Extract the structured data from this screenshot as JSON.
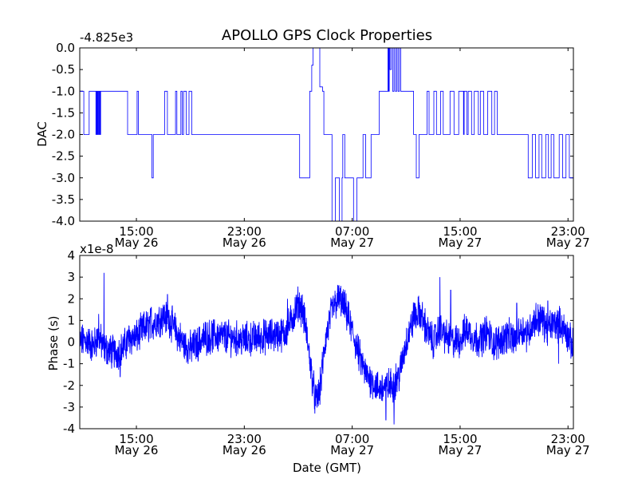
{
  "figure": {
    "title": "APOLLO GPS Clock Properties",
    "xlabel": "Date (GMT)"
  },
  "chart_data": [
    {
      "type": "line",
      "ylabel": "DAC",
      "offset_label": "-4.825e3",
      "ylim": [
        -4.0,
        0.0
      ],
      "yticks": [
        "0.0",
        "-0.5",
        "-1.0",
        "-1.5",
        "-2.0",
        "-2.5",
        "-3.0",
        "-3.5",
        "-4.0"
      ],
      "xlim_hours": [
        10.8,
        47.4
      ],
      "xticks": [
        {
          "x": 15,
          "time": "15:00",
          "date": "May 26"
        },
        {
          "x": 23,
          "time": "23:00",
          "date": "May 26"
        },
        {
          "x": 31,
          "time": "07:00",
          "date": "May 27"
        },
        {
          "x": 39,
          "time": "15:00",
          "date": "May 27"
        },
        {
          "x": 47,
          "time": "23:00",
          "date": "May 27"
        }
      ],
      "grid": false,
      "color": "#0000ff",
      "series_steps": [
        [
          10.8,
          -1.0
        ],
        [
          11.1,
          -2.0
        ],
        [
          11.5,
          -1.0
        ],
        [
          12.0,
          -2.0
        ],
        [
          12.05,
          -1.0
        ],
        [
          12.1,
          -2.0
        ],
        [
          12.15,
          -1.0
        ],
        [
          12.2,
          -2.0
        ],
        [
          12.25,
          -1.0
        ],
        [
          12.3,
          -2.0
        ],
        [
          12.35,
          -1.0
        ],
        [
          14.3,
          -1.0
        ],
        [
          14.35,
          -2.0
        ],
        [
          15.0,
          -2.0
        ],
        [
          15.05,
          -1.0
        ],
        [
          15.15,
          -2.0
        ],
        [
          16.1,
          -2.0
        ],
        [
          16.15,
          -3.0
        ],
        [
          16.25,
          -2.0
        ],
        [
          17.0,
          -2.0
        ],
        [
          17.1,
          -1.0
        ],
        [
          17.3,
          -2.0
        ],
        [
          17.8,
          -2.0
        ],
        [
          17.9,
          -1.0
        ],
        [
          18.0,
          -2.0
        ],
        [
          18.3,
          -1.0
        ],
        [
          18.4,
          -2.0
        ],
        [
          18.5,
          -1.0
        ],
        [
          18.7,
          -2.0
        ],
        [
          18.9,
          -1.0
        ],
        [
          19.1,
          -2.0
        ],
        [
          27.0,
          -2.0
        ],
        [
          27.1,
          -3.0
        ],
        [
          27.8,
          -3.0
        ],
        [
          27.85,
          -1.0
        ],
        [
          28.0,
          -0.4
        ],
        [
          28.1,
          0.0
        ],
        [
          28.5,
          0.0
        ],
        [
          28.6,
          -0.9
        ],
        [
          28.8,
          -1.0
        ],
        [
          28.9,
          -2.0
        ],
        [
          29.4,
          -2.0
        ],
        [
          29.5,
          -4.0
        ],
        [
          29.7,
          -4.0
        ],
        [
          29.75,
          -3.0
        ],
        [
          30.0,
          -3.0
        ],
        [
          30.05,
          -4.0
        ],
        [
          30.2,
          -4.0
        ],
        [
          30.25,
          -3.0
        ],
        [
          30.3,
          -2.0
        ],
        [
          30.45,
          -3.0
        ],
        [
          31.0,
          -3.0
        ],
        [
          31.1,
          -4.0
        ],
        [
          31.3,
          -4.0
        ],
        [
          31.35,
          -3.0
        ],
        [
          31.5,
          -3.0
        ],
        [
          31.6,
          -3.0
        ],
        [
          31.8,
          -2.0
        ],
        [
          32.0,
          -3.0
        ],
        [
          32.1,
          -3.0
        ],
        [
          32.3,
          -3.0
        ],
        [
          32.4,
          -2.0
        ],
        [
          33.0,
          -1.0
        ],
        [
          33.6,
          -1.0
        ],
        [
          33.65,
          0.0
        ],
        [
          33.7,
          -1.0
        ],
        [
          33.75,
          0.0
        ],
        [
          33.8,
          -0.5
        ],
        [
          33.9,
          0.0
        ],
        [
          34.0,
          -1.0
        ],
        [
          34.1,
          0.0
        ],
        [
          34.2,
          -1.0
        ],
        [
          34.3,
          0.0
        ],
        [
          34.4,
          -1.0
        ],
        [
          34.5,
          0.0
        ],
        [
          34.6,
          -1.0
        ],
        [
          35.5,
          -1.0
        ],
        [
          35.55,
          -2.0
        ],
        [
          35.7,
          -2.0
        ],
        [
          35.75,
          -3.0
        ],
        [
          35.9,
          -3.0
        ],
        [
          35.95,
          -2.0
        ],
        [
          36.5,
          -2.0
        ],
        [
          36.55,
          -1.0
        ],
        [
          36.7,
          -2.0
        ],
        [
          37.0,
          -2.0
        ],
        [
          37.05,
          -1.0
        ],
        [
          37.2,
          -1.0
        ],
        [
          37.25,
          -2.0
        ],
        [
          37.5,
          -2.0
        ],
        [
          37.55,
          -1.0
        ],
        [
          37.7,
          -1.0
        ],
        [
          37.75,
          -2.0
        ],
        [
          38.2,
          -2.0
        ],
        [
          38.25,
          -1.0
        ],
        [
          38.5,
          -1.0
        ],
        [
          38.55,
          -2.0
        ],
        [
          38.8,
          -2.0
        ],
        [
          38.9,
          -1.0
        ],
        [
          39.2,
          -1.0
        ],
        [
          39.25,
          -2.0
        ],
        [
          39.3,
          -1.0
        ],
        [
          39.4,
          -1.0
        ],
        [
          39.5,
          -2.0
        ],
        [
          39.6,
          -1.0
        ],
        [
          39.8,
          -1.0
        ],
        [
          39.85,
          -2.0
        ],
        [
          40.0,
          -2.0
        ],
        [
          40.05,
          -1.0
        ],
        [
          40.3,
          -1.0
        ],
        [
          40.35,
          -2.0
        ],
        [
          40.5,
          -1.0
        ],
        [
          40.7,
          -1.0
        ],
        [
          40.75,
          -2.0
        ],
        [
          41.0,
          -2.0
        ],
        [
          41.05,
          -1.0
        ],
        [
          41.3,
          -1.0
        ],
        [
          41.35,
          -2.0
        ],
        [
          41.5,
          -2.0
        ],
        [
          41.55,
          -1.0
        ],
        [
          41.7,
          -1.0
        ],
        [
          41.75,
          -2.0
        ],
        [
          44.0,
          -2.0
        ],
        [
          44.05,
          -3.0
        ],
        [
          44.3,
          -3.0
        ],
        [
          44.35,
          -2.0
        ],
        [
          44.5,
          -2.0
        ],
        [
          44.6,
          -3.0
        ],
        [
          44.8,
          -3.0
        ],
        [
          44.85,
          -2.0
        ],
        [
          45.0,
          -2.0
        ],
        [
          45.05,
          -3.0
        ],
        [
          45.3,
          -3.0
        ],
        [
          45.35,
          -2.0
        ],
        [
          45.5,
          -2.0
        ],
        [
          45.55,
          -3.0
        ],
        [
          45.7,
          -3.0
        ],
        [
          45.75,
          -2.0
        ],
        [
          45.9,
          -2.0
        ],
        [
          45.95,
          -3.0
        ],
        [
          46.3,
          -3.0
        ],
        [
          46.35,
          -2.0
        ],
        [
          46.5,
          -2.0
        ],
        [
          46.6,
          -3.0
        ],
        [
          46.8,
          -3.0
        ],
        [
          46.85,
          -2.0
        ],
        [
          47.0,
          -2.0
        ],
        [
          47.1,
          -3.0
        ],
        [
          47.4,
          -3.0
        ]
      ]
    },
    {
      "type": "line",
      "ylabel": "Phase (s)",
      "offset_label": "x1e-8",
      "ylim": [
        -4,
        4
      ],
      "yticks": [
        "4",
        "3",
        "2",
        "1",
        "0",
        "-1",
        "-2",
        "-3",
        "-4"
      ],
      "xlim_hours": [
        10.8,
        47.4
      ],
      "xticks": [
        {
          "x": 15,
          "time": "15:00",
          "date": "May 26"
        },
        {
          "x": 23,
          "time": "23:00",
          "date": "May 26"
        },
        {
          "x": 31,
          "time": "07:00",
          "date": "May 27"
        },
        {
          "x": 39,
          "time": "15:00",
          "date": "May 27"
        },
        {
          "x": 47,
          "time": "23:00",
          "date": "May 27"
        }
      ],
      "grid": false,
      "color": "#0000ff",
      "series_trend": [
        [
          10.8,
          0.0
        ],
        [
          11.3,
          0.1
        ],
        [
          11.8,
          -0.2
        ],
        [
          12.2,
          0.3
        ],
        [
          12.5,
          -0.2
        ],
        [
          13.0,
          -0.4
        ],
        [
          13.5,
          -0.5
        ],
        [
          14.0,
          -0.3
        ],
        [
          14.5,
          0.2
        ],
        [
          15.0,
          0.2
        ],
        [
          15.5,
          0.6
        ],
        [
          16.0,
          0.8
        ],
        [
          16.5,
          1.0
        ],
        [
          17.0,
          1.2
        ],
        [
          17.5,
          1.0
        ],
        [
          18.0,
          0.4
        ],
        [
          18.5,
          -0.1
        ],
        [
          19.0,
          -0.3
        ],
        [
          19.5,
          -0.1
        ],
        [
          20.0,
          0.2
        ],
        [
          21.0,
          0.3
        ],
        [
          22.0,
          0.2
        ],
        [
          23.0,
          0.1
        ],
        [
          24.0,
          0.2
        ],
        [
          25.0,
          0.3
        ],
        [
          26.0,
          0.4
        ],
        [
          26.5,
          1.0
        ],
        [
          27.0,
          1.8
        ],
        [
          27.3,
          1.5
        ],
        [
          27.6,
          0.5
        ],
        [
          28.0,
          -1.5
        ],
        [
          28.3,
          -2.8
        ],
        [
          28.6,
          -2.2
        ],
        [
          29.0,
          0.0
        ],
        [
          29.5,
          1.5
        ],
        [
          30.0,
          2.0
        ],
        [
          30.5,
          1.5
        ],
        [
          31.0,
          0.5
        ],
        [
          31.5,
          -0.6
        ],
        [
          32.0,
          -1.5
        ],
        [
          32.5,
          -1.8
        ],
        [
          33.0,
          -2.2
        ],
        [
          33.5,
          -2.0
        ],
        [
          34.0,
          -2.0
        ],
        [
          34.5,
          -1.5
        ],
        [
          35.0,
          0.0
        ],
        [
          35.5,
          1.0
        ],
        [
          36.0,
          1.4
        ],
        [
          36.5,
          0.6
        ],
        [
          37.0,
          0.0
        ],
        [
          37.5,
          0.6
        ],
        [
          38.0,
          0.2
        ],
        [
          38.5,
          0.0
        ],
        [
          39.0,
          0.1
        ],
        [
          39.5,
          0.6
        ],
        [
          40.0,
          0.2
        ],
        [
          40.5,
          0.1
        ],
        [
          41.0,
          0.5
        ],
        [
          41.5,
          -0.1
        ],
        [
          42.0,
          0.1
        ],
        [
          42.5,
          0.3
        ],
        [
          43.0,
          0.1
        ],
        [
          43.5,
          0.6
        ],
        [
          44.0,
          0.4
        ],
        [
          44.5,
          1.0
        ],
        [
          45.0,
          1.1
        ],
        [
          45.5,
          0.6
        ],
        [
          46.0,
          0.9
        ],
        [
          46.5,
          0.8
        ],
        [
          47.0,
          0.3
        ],
        [
          47.4,
          -0.3
        ]
      ],
      "spikes": [
        [
          12.2,
          1.3
        ],
        [
          12.6,
          3.2
        ],
        [
          13.8,
          -1.6
        ],
        [
          16.1,
          1.6
        ],
        [
          17.3,
          2.2
        ],
        [
          26.2,
          2.0
        ],
        [
          28.2,
          -3.1
        ],
        [
          33.5,
          -3.6
        ],
        [
          34.1,
          -3.8
        ],
        [
          35.6,
          1.8
        ],
        [
          37.5,
          3.0
        ],
        [
          38.3,
          2.4
        ],
        [
          43.2,
          1.8
        ],
        [
          45.5,
          1.9
        ],
        [
          46.3,
          -1.0
        ]
      ]
    }
  ]
}
